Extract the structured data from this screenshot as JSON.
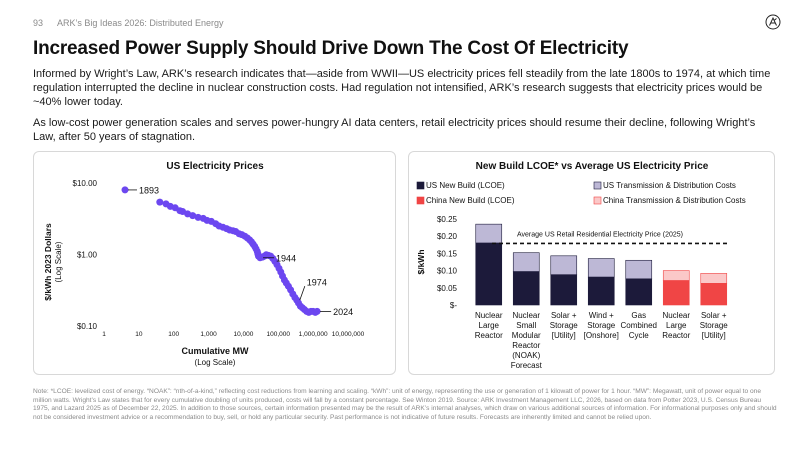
{
  "header": {
    "page_number": "93",
    "doc_title": "ARK’s Big Ideas 2026: Distributed Energy"
  },
  "logo_icon": "ark-logo-icon",
  "title": "Increased Power Supply Should Drive Down The Cost Of Electricity",
  "paragraphs": [
    "Informed by Wright’s Law, ARK’s research indicates that—aside from WWII—US electricity prices fell steadily from the late 1800s to 1974, at which time regulation interrupted the decline in nuclear construction costs. Had regulation not intensified, ARK’s research suggests that electricity prices would be ~40% lower today.",
    "As low-cost power generation scales and serves power-hungry AI data centers, retail electricity prices should resume their decline, following Wright’s Law, after 50 years of stagnation."
  ],
  "colors": {
    "purple": "#6c47f0",
    "navy": "#1c1a3a",
    "lavender": "#bdb8d6",
    "red": "#f04545",
    "pink": "#fbc8c8"
  },
  "chart_data": [
    {
      "type": "scatter",
      "title": "US Electricity Prices",
      "xlabel": "Cumulative MW",
      "xlabel_sub": "(Log Scale)",
      "ylabel": "$/kWh 2023 Dollars",
      "ylabel_sub": "(Log Scale)",
      "xscale": "log",
      "yscale": "log",
      "xlim": [
        1,
        10000000
      ],
      "ylim": [
        0.1,
        10
      ],
      "x_ticks": [
        "1",
        "10",
        "100",
        "1,000",
        "10,000",
        "100,000",
        "1,000,000",
        "10,000,000"
      ],
      "y_ticks": [
        "$10.00",
        "$1.00",
        "$0.10"
      ],
      "points": [
        [
          4,
          8
        ],
        [
          40,
          5.4
        ],
        [
          60,
          5.1
        ],
        [
          80,
          4.7
        ],
        [
          110,
          4.5
        ],
        [
          150,
          4.1
        ],
        [
          180,
          4.0
        ],
        [
          250,
          3.7
        ],
        [
          350,
          3.5
        ],
        [
          500,
          3.3
        ],
        [
          700,
          3.2
        ],
        [
          900,
          3.0
        ],
        [
          1200,
          2.9
        ],
        [
          1600,
          2.7
        ],
        [
          2000,
          2.5
        ],
        [
          2600,
          2.4
        ],
        [
          3300,
          2.3
        ],
        [
          4000,
          2.2
        ],
        [
          5000,
          2.15
        ],
        [
          6000,
          2.1
        ],
        [
          7500,
          1.95
        ],
        [
          9000,
          1.9
        ],
        [
          11000,
          1.8
        ],
        [
          13000,
          1.7
        ],
        [
          15000,
          1.6
        ],
        [
          17000,
          1.5
        ],
        [
          19000,
          1.4
        ],
        [
          21000,
          1.3
        ],
        [
          23000,
          1.2
        ],
        [
          25000,
          1.1
        ],
        [
          26000,
          1.02
        ],
        [
          27000,
          0.95
        ],
        [
          30000,
          0.9
        ],
        [
          35000,
          0.92
        ],
        [
          40000,
          0.95
        ],
        [
          45000,
          0.99
        ],
        [
          52000,
          0.97
        ],
        [
          60000,
          0.95
        ],
        [
          70000,
          0.88
        ],
        [
          80000,
          0.8
        ],
        [
          92000,
          0.72
        ],
        [
          105000,
          0.64
        ],
        [
          118000,
          0.57
        ],
        [
          132000,
          0.5
        ],
        [
          150000,
          0.44
        ],
        [
          170000,
          0.4
        ],
        [
          195000,
          0.36
        ],
        [
          225000,
          0.32
        ],
        [
          260000,
          0.28
        ],
        [
          300000,
          0.25
        ],
        [
          340000,
          0.23
        ],
        [
          380000,
          0.21
        ],
        [
          430000,
          0.19
        ],
        [
          490000,
          0.18
        ],
        [
          560000,
          0.17
        ],
        [
          650000,
          0.16
        ],
        [
          750000,
          0.155
        ],
        [
          870000,
          0.16
        ],
        [
          1000000,
          0.16
        ],
        [
          1150000,
          0.155
        ],
        [
          1300000,
          0.16
        ]
      ],
      "annotations": [
        {
          "label": "1893",
          "x": 4,
          "y": 8
        },
        {
          "label": "1944",
          "x": 30000,
          "y": 0.9
        },
        {
          "label": "1974",
          "x": 340000,
          "y": 0.23
        },
        {
          "label": "2024",
          "x": 1300000,
          "y": 0.16
        }
      ]
    },
    {
      "type": "bar",
      "stacked": true,
      "title": "New Build LCOE* vs Average US Electricity Price",
      "ylabel": "$/kWh",
      "ylim": [
        0,
        0.25
      ],
      "y_ticks": [
        "$0.25",
        "$0.20",
        "$0.15",
        "$0.10",
        "$0.05",
        "$-"
      ],
      "categories": [
        [
          "Nuclear",
          "Large",
          "Reactor"
        ],
        [
          "Nuclear",
          "Small",
          "Modular",
          "Reactor",
          "(NOAK)",
          "Forecast"
        ],
        [
          "Solar +",
          "Storage",
          "[Utility]"
        ],
        [
          "Wind +",
          "Storage",
          "[Onshore]"
        ],
        [
          "Gas",
          "Combined",
          "Cycle"
        ],
        [
          "Nuclear",
          "Large",
          "Reactor"
        ],
        [
          "Solar +",
          "Storage",
          "[Utility]"
        ]
      ],
      "legend": [
        "US New Build (LCOE)",
        "US Transmission & Distribution Costs",
        "China New Build (LCOE)",
        "China Transmission & Distribution Costs"
      ],
      "series": [
        {
          "name": "New Build (LCOE)",
          "values": [
            0.18,
            0.097,
            0.088,
            0.081,
            0.076,
            0.071,
            0.063
          ]
        },
        {
          "name": "Transmission & Distribution Costs",
          "values": [
            0.055,
            0.055,
            0.055,
            0.054,
            0.054,
            0.029,
            0.029
          ]
        }
      ],
      "region": [
        "US",
        "US",
        "US",
        "US",
        "US",
        "China",
        "China"
      ],
      "reference_line": {
        "label": "Average US Retail Residential Electricity Price (2025)",
        "value": 0.179
      }
    }
  ],
  "footnote": "Note: *LCOE: levelized cost of energy. “NOAK”: “nth-of-a-kind,” reflecting cost reductions from learning and scaling. “kWh”: unit of energy, representing the use or generation of 1 kilowatt of power for 1 hour. “MW”: Megawatt, unit of power equal to one million watts. Wright’s Law states that for every cumulative doubling of units produced, costs will fall by a constant percentage. See Winton 2019. Source: ARK Investment Management LLC, 2026, based on data from Potter 2023, U.S. Census Bureau 1975, and Lazard 2025 as of December 22, 2025. In addition to those sources, certain information presented may be the result of ARK’s internal analyses, which draw on various additional sources of information. For informational purposes only and should not be considered investment advice or a recommendation to buy, sell, or hold any particular security. Past performance is not indicative of future results. Forecasts are inherently limited and cannot be relied upon."
}
